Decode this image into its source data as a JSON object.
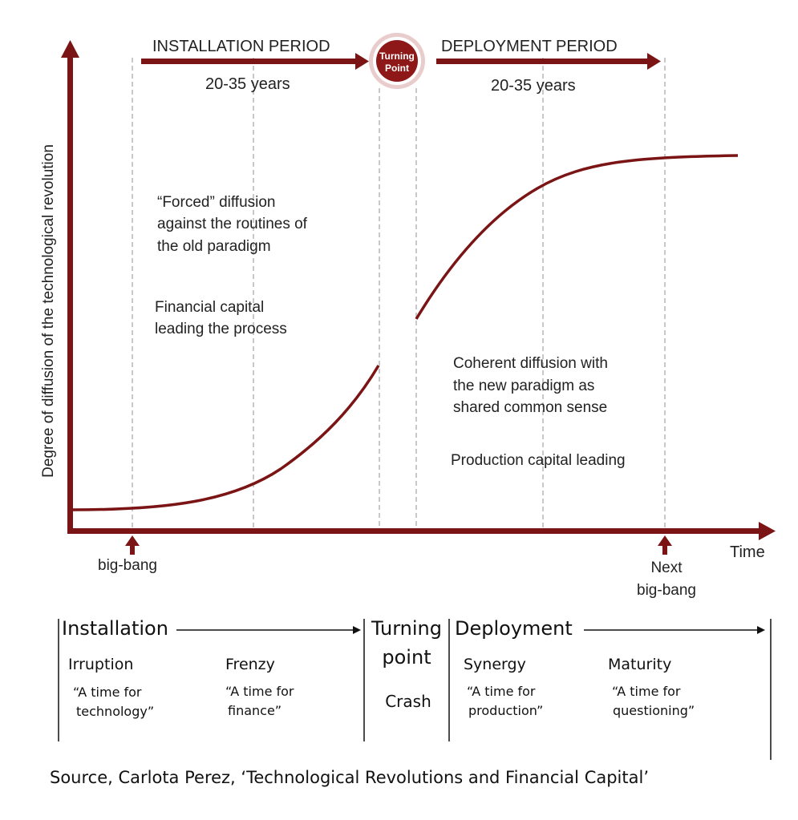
{
  "colors": {
    "accent": "#7b1414",
    "guide": "#c8c8c8",
    "text": "#222222"
  },
  "top": {
    "installation_label": "INSTALLATION PERIOD",
    "installation_years": "20-35 years",
    "deployment_label": "DEPLOYMENT PERIOD",
    "deployment_years": "20-35 years",
    "turning_point_line1": "Turning",
    "turning_point_line2": "Point"
  },
  "axes": {
    "y_label": "Degree of diffusion of the technological revolution",
    "x_label": "Time",
    "big_bang": "big-bang",
    "next_big_bang_line1": "Next",
    "next_big_bang_line2": "big-bang"
  },
  "notes": {
    "forced": [
      "“Forced” diffusion",
      "against the routines of",
      "the old paradigm"
    ],
    "financial": [
      "Financial capital",
      "leading the process"
    ],
    "coherent": [
      "Coherent diffusion with",
      "the new paradigm as",
      "shared common sense"
    ],
    "production": "Production capital leading"
  },
  "phases": {
    "installation": "Installation",
    "turning_point_line1": "Turning",
    "turning_point_line2": "point",
    "deployment": "Deployment",
    "irruption": {
      "name": "Irruption",
      "quote": [
        "“A time for",
        "technology”"
      ]
    },
    "frenzy": {
      "name": "Frenzy",
      "quote": [
        "“A time for",
        "finance”"
      ]
    },
    "crash": "Crash",
    "synergy": {
      "name": "Synergy",
      "quote": [
        "“A time for",
        "production”"
      ]
    },
    "maturity": {
      "name": "Maturity",
      "quote": [
        "“A time for",
        "questioning”"
      ]
    }
  },
  "source": "Source, Carlota Perez, ‘Technological Revolutions and Financial Capital’"
}
